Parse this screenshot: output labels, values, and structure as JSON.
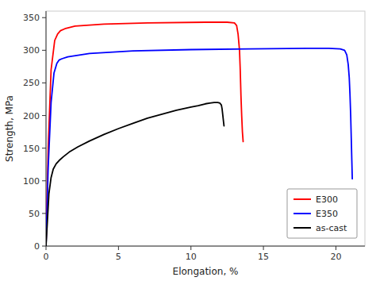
{
  "chart_data": {
    "type": "line",
    "xlabel": "Elongation, %",
    "ylabel": "Strength, MPa",
    "xlim": [
      0,
      22
    ],
    "ylim": [
      0,
      360
    ],
    "xticks": [
      0,
      5,
      10,
      15,
      20
    ],
    "yticks": [
      0,
      50,
      100,
      150,
      200,
      250,
      300,
      350
    ],
    "grid": false,
    "legend": "lower right",
    "series": [
      {
        "name": "E300",
        "color": "#ff0000",
        "x": [
          0.0,
          0.15,
          0.35,
          0.6,
          0.8,
          1.0,
          1.3,
          2.0,
          4.0,
          7.0,
          11.0,
          12.5,
          13.0,
          13.15,
          13.25,
          13.35,
          13.4,
          13.45,
          13.5,
          13.55,
          13.6
        ],
        "values": [
          0,
          150,
          270,
          315,
          325,
          330,
          333,
          337,
          340,
          342,
          343,
          343,
          342,
          338,
          325,
          300,
          270,
          230,
          200,
          175,
          160
        ]
      },
      {
        "name": "E350",
        "color": "#0000ff",
        "x": [
          0.0,
          0.15,
          0.35,
          0.55,
          0.75,
          0.9,
          1.1,
          1.5,
          3.0,
          6.0,
          10.0,
          14.0,
          18.0,
          19.5,
          20.3,
          20.6,
          20.75,
          20.85,
          20.92,
          20.97,
          21.02,
          21.06,
          21.1,
          21.13
        ],
        "values": [
          0,
          120,
          220,
          265,
          280,
          285,
          287,
          290,
          295,
          299,
          301,
          302,
          303,
          303,
          302,
          300,
          293,
          278,
          258,
          233,
          200,
          165,
          130,
          103
        ]
      },
      {
        "name": "as-cast",
        "color": "#000000",
        "x": [
          0.0,
          0.1,
          0.2,
          0.35,
          0.5,
          0.7,
          0.9,
          1.2,
          1.6,
          2.2,
          3.0,
          4.0,
          5.0,
          6.0,
          7.0,
          8.0,
          9.0,
          10.0,
          10.5,
          11.0,
          11.3,
          11.6,
          11.85,
          12.0,
          12.1,
          12.15,
          12.2,
          12.25,
          12.28
        ],
        "values": [
          0,
          40,
          80,
          105,
          118,
          126,
          131,
          137,
          144,
          152,
          161,
          171,
          180,
          188,
          196,
          202,
          208,
          213,
          215,
          218,
          219,
          220,
          220,
          219,
          216,
          210,
          200,
          190,
          184
        ]
      }
    ]
  }
}
